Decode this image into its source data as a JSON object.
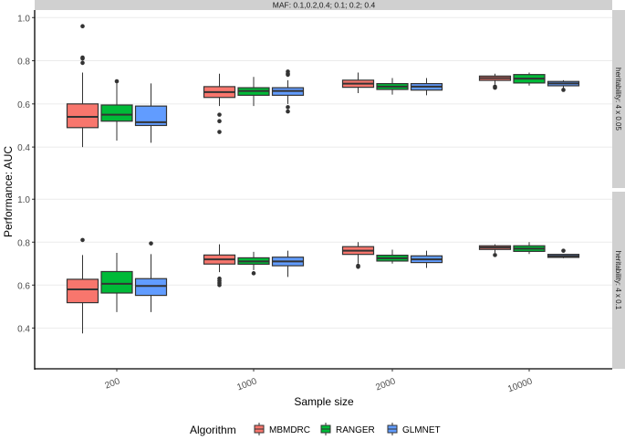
{
  "chart_data": {
    "type": "boxplot",
    "xlabel": "Sample size",
    "ylabel": "Performance: AUC",
    "ylim": [
      0.21,
      1.035
    ],
    "yticks": [
      0.4,
      0.6,
      0.8,
      1.0
    ],
    "ytick_labels": [
      "0.4",
      "0.6",
      "0.8",
      "1.0"
    ],
    "grid": true,
    "categories": [
      "200",
      "1000",
      "2000",
      "10000"
    ],
    "top_strip": "MAF: 0.1,0.2,0.4; 0.1; 0.2; 0.4",
    "legend": {
      "title": "Algorithm",
      "placement": "bottom",
      "entries": [
        "MBMDRC",
        "RANGER",
        "GLMNET"
      ]
    },
    "colors": {
      "MBMDRC": "#F8766D",
      "RANGER": "#00BA38",
      "GLMNET": "#619CFF"
    },
    "panels": [
      {
        "strip": "heritability: 4 x 0.05",
        "series": [
          {
            "name": "MBMDRC",
            "boxes": [
              {
                "low": 0.4,
                "q1": 0.49,
                "med": 0.54,
                "q3": 0.6,
                "high": 0.745,
                "outliers": [
                  0.96,
                  0.815,
                  0.81,
                  0.79
                ]
              },
              {
                "low": 0.59,
                "q1": 0.63,
                "med": 0.655,
                "q3": 0.68,
                "high": 0.74,
                "outliers": [
                  0.55,
                  0.52,
                  0.47
                ]
              },
              {
                "low": 0.65,
                "q1": 0.677,
                "med": 0.694,
                "q3": 0.71,
                "high": 0.745,
                "outliers": []
              },
              {
                "low": 0.69,
                "q1": 0.709,
                "med": 0.72,
                "q3": 0.729,
                "high": 0.74,
                "outliers": [
                  0.68,
                  0.675
                ]
              }
            ]
          },
          {
            "name": "RANGER",
            "boxes": [
              {
                "low": 0.43,
                "q1": 0.52,
                "med": 0.55,
                "q3": 0.595,
                "high": 0.705,
                "outliers": [
                  0.705
                ]
              },
              {
                "low": 0.59,
                "q1": 0.64,
                "med": 0.66,
                "q3": 0.675,
                "high": 0.725,
                "outliers": []
              },
              {
                "low": 0.643,
                "q1": 0.667,
                "med": 0.68,
                "q3": 0.694,
                "high": 0.72,
                "outliers": []
              },
              {
                "low": 0.685,
                "q1": 0.697,
                "med": 0.717,
                "q3": 0.736,
                "high": 0.745,
                "outliers": []
              }
            ]
          },
          {
            "name": "GLMNET",
            "boxes": [
              {
                "low": 0.42,
                "q1": 0.5,
                "med": 0.515,
                "q3": 0.59,
                "high": 0.695,
                "outliers": []
              },
              {
                "low": 0.6,
                "q1": 0.64,
                "med": 0.66,
                "q3": 0.675,
                "high": 0.71,
                "outliers": [
                  0.75,
                  0.74,
                  0.735,
                  0.585,
                  0.565
                ]
              },
              {
                "low": 0.64,
                "q1": 0.664,
                "med": 0.68,
                "q3": 0.694,
                "high": 0.72,
                "outliers": []
              },
              {
                "low": 0.67,
                "q1": 0.684,
                "med": 0.695,
                "q3": 0.704,
                "high": 0.71,
                "outliers": [
                  0.665
                ]
              }
            ]
          }
        ]
      },
      {
        "strip": "heritability: 4 x 0.1",
        "series": [
          {
            "name": "MBMDRC",
            "boxes": [
              {
                "low": 0.375,
                "q1": 0.518,
                "med": 0.58,
                "q3": 0.627,
                "high": 0.74,
                "outliers": [
                  0.81
                ]
              },
              {
                "low": 0.66,
                "q1": 0.698,
                "med": 0.72,
                "q3": 0.74,
                "high": 0.79,
                "outliers": [
                  0.63,
                  0.62,
                  0.61,
                  0.6
                ]
              },
              {
                "low": 0.7,
                "q1": 0.743,
                "med": 0.76,
                "q3": 0.779,
                "high": 0.8,
                "outliers": [
                  0.69,
                  0.685
                ]
              },
              {
                "low": 0.75,
                "q1": 0.766,
                "med": 0.775,
                "q3": 0.783,
                "high": 0.79,
                "outliers": [
                  0.74
                ]
              }
            ]
          },
          {
            "name": "RANGER",
            "boxes": [
              {
                "low": 0.474,
                "q1": 0.563,
                "med": 0.606,
                "q3": 0.663,
                "high": 0.75,
                "outliers": []
              },
              {
                "low": 0.67,
                "q1": 0.697,
                "med": 0.71,
                "q3": 0.727,
                "high": 0.755,
                "outliers": [
                  0.655
                ]
              },
              {
                "low": 0.7,
                "q1": 0.712,
                "med": 0.725,
                "q3": 0.739,
                "high": 0.765,
                "outliers": []
              },
              {
                "low": 0.745,
                "q1": 0.757,
                "med": 0.77,
                "q3": 0.783,
                "high": 0.8,
                "outliers": []
              }
            ]
          },
          {
            "name": "GLMNET",
            "boxes": [
              {
                "low": 0.474,
                "q1": 0.552,
                "med": 0.596,
                "q3": 0.63,
                "high": 0.744,
                "outliers": [
                  0.794
                ]
              },
              {
                "low": 0.638,
                "q1": 0.69,
                "med": 0.71,
                "q3": 0.73,
                "high": 0.76,
                "outliers": []
              },
              {
                "low": 0.68,
                "q1": 0.705,
                "med": 0.72,
                "q3": 0.736,
                "high": 0.76,
                "outliers": []
              },
              {
                "low": 0.725,
                "q1": 0.729,
                "med": 0.735,
                "q3": 0.743,
                "high": 0.745,
                "outliers": [
                  0.76
                ]
              }
            ]
          }
        ]
      }
    ]
  }
}
